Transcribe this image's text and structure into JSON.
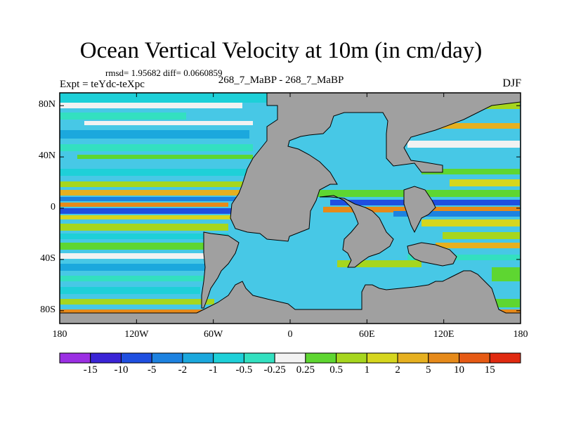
{
  "title": "Ocean Vertical Velocity at 10m (in cm/day)",
  "stats": "rmsd= 1.95682 diff= 0.0660859",
  "expt": "Expt = teYdc-teXpc",
  "runs": "268_7_MaBP - 268_7_MaBP",
  "season": "DJF",
  "map": {
    "lat_labels": [
      "80N",
      "40N",
      "0",
      "40S",
      "80S"
    ],
    "lat_values": [
      80,
      40,
      0,
      -40,
      -80
    ],
    "lon_labels": [
      "180",
      "120W",
      "60W",
      "0",
      "60E",
      "120E",
      "180"
    ],
    "lon_values": [
      -180,
      -120,
      -60,
      0,
      60,
      120,
      180
    ],
    "lat_range": [
      -90,
      90
    ],
    "lon_range": [
      -180,
      180
    ],
    "land_color": "#a0a0a0"
  },
  "colorbar": {
    "labels": [
      "-15",
      "-10",
      "-5",
      "-2",
      "-1",
      "-0.5",
      "-0.25",
      "0.25",
      "0.5",
      "1",
      "2",
      "5",
      "10",
      "15"
    ],
    "colors": [
      "#9b2fe3",
      "#3a24d6",
      "#1f4fe0",
      "#1d82e0",
      "#1ba8dd",
      "#1ed0d8",
      "#33e0c0",
      "#f2f2f2",
      "#5ed631",
      "#a6d61e",
      "#d6d61e",
      "#e6b020",
      "#e68a1a",
      "#e65a14",
      "#e02a10"
    ]
  }
}
